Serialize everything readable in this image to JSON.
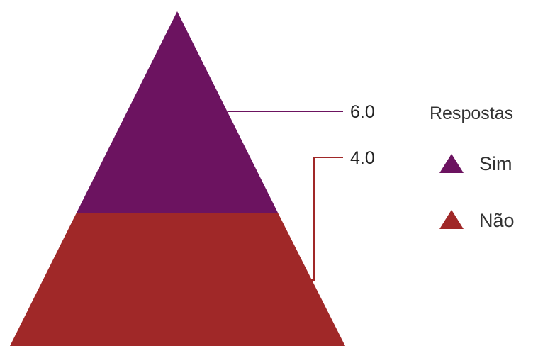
{
  "chart_data": {
    "type": "pyramid",
    "title": "",
    "series": [
      {
        "name": "Sim",
        "value": 6.0,
        "value_label": "6.0",
        "color": "#6c1360"
      },
      {
        "name": "Não",
        "value": 4.0,
        "value_label": "4.0",
        "color": "#a02828"
      }
    ],
    "legend": {
      "title": "Respostas",
      "placement": "right",
      "entries": [
        "Sim",
        "Não"
      ]
    }
  }
}
